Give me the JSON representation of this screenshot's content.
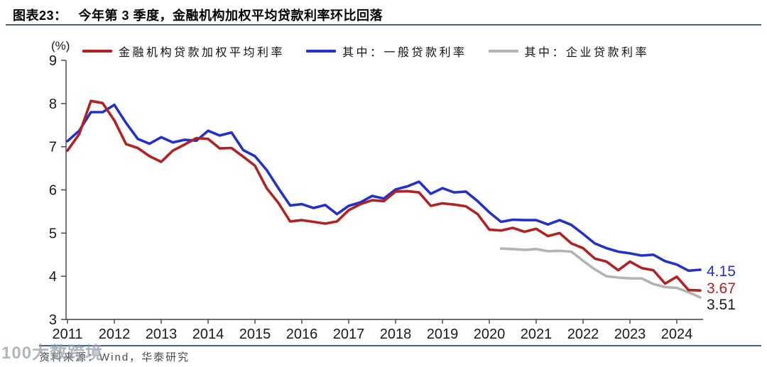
{
  "header": {
    "figure_label": "图表23：",
    "title": "今年第 3 季度，金融机构加权平均贷款利率环比回落",
    "unit": "(%)"
  },
  "legend": {
    "items": [
      {
        "label": "金融机构贷款加权平均利率"
      },
      {
        "label": "其中：一般贷款利率"
      },
      {
        "label": "其中：企业贷款利率"
      }
    ]
  },
  "chart_data": {
    "type": "line",
    "title": "今年第3季度，金融机构加权平均贷款利率环比回落",
    "x_unit": "quarter",
    "x_range": [
      "2011Q1",
      "2024Q3"
    ],
    "x_tick_labels": [
      "2011",
      "2012",
      "2013",
      "2014",
      "2015",
      "2016",
      "2017",
      "2018",
      "2019",
      "2020",
      "2021",
      "2022",
      "2023",
      "2024"
    ],
    "ylabel": "(%)",
    "ylim": [
      3,
      9
    ],
    "y_ticks": [
      9,
      8,
      7,
      6,
      5,
      4,
      3
    ],
    "grid": false,
    "legend_position": "top",
    "series": [
      {
        "name": "金融机构贷款加权平均利率",
        "color": "#b22222",
        "start": "2011Q1",
        "start_index": 0,
        "end_label": "3.67",
        "end_label_color": "#b22222",
        "values": [
          6.91,
          7.29,
          8.06,
          8.01,
          7.61,
          7.06,
          6.97,
          6.78,
          6.65,
          6.91,
          7.05,
          7.2,
          7.18,
          6.96,
          6.97,
          6.77,
          6.56,
          6.04,
          5.7,
          5.27,
          5.3,
          5.26,
          5.22,
          5.27,
          5.53,
          5.67,
          5.76,
          5.74,
          5.96,
          5.97,
          5.94,
          5.63,
          5.69,
          5.66,
          5.62,
          5.44,
          5.08,
          5.06,
          5.12,
          5.03,
          5.1,
          4.93,
          5.0,
          4.76,
          4.65,
          4.41,
          4.34,
          4.14,
          4.34,
          4.19,
          4.14,
          3.83,
          3.99,
          3.68,
          3.67
        ]
      },
      {
        "name": "其中：一般贷款利率",
        "color": "#2330cc",
        "start": "2011Q1",
        "start_index": 0,
        "end_label": "4.15",
        "end_label_color": "#2330cc",
        "values": [
          7.13,
          7.37,
          7.8,
          7.8,
          7.97,
          7.55,
          7.18,
          7.07,
          7.22,
          7.1,
          7.16,
          7.14,
          7.37,
          7.26,
          7.33,
          6.92,
          6.78,
          6.46,
          6.04,
          5.64,
          5.67,
          5.58,
          5.65,
          5.44,
          5.63,
          5.71,
          5.86,
          5.8,
          6.01,
          6.08,
          6.19,
          5.91,
          6.04,
          5.94,
          5.96,
          5.74,
          5.48,
          5.26,
          5.31,
          5.3,
          5.3,
          5.2,
          5.3,
          5.19,
          4.98,
          4.76,
          4.65,
          4.57,
          4.53,
          4.48,
          4.5,
          4.35,
          4.27,
          4.13,
          4.15
        ]
      },
      {
        "name": "其中：企业贷款利率",
        "color": "#b3b3b3",
        "start": "2020Q2",
        "start_index": 37,
        "end_label": "3.51",
        "end_label_color": "#1a1a1a",
        "values": [
          4.64,
          4.63,
          4.61,
          4.63,
          4.58,
          4.59,
          4.57,
          4.36,
          4.16,
          4.0,
          3.97,
          3.95,
          3.95,
          3.82,
          3.75,
          3.73,
          3.63,
          3.51
        ]
      }
    ]
  },
  "footer": {
    "source": "资料来源：Wind，华泰研究"
  },
  "watermark": "100大数跨境",
  "colors": {
    "rule": "#44608a",
    "axis": "#404040",
    "tick_label": "#1a1a1a"
  }
}
